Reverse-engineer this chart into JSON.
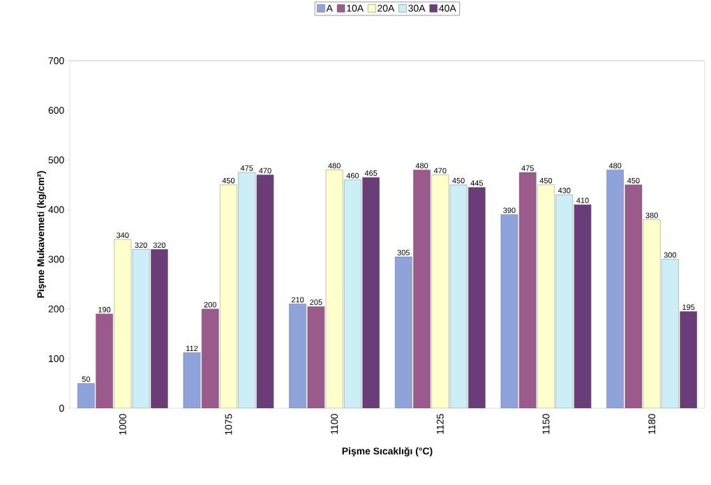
{
  "chart_data": {
    "type": "bar",
    "xlabel": "Pişme Sıcaklığı (°C)",
    "ylabel": "Pişme Mukavemeti (kg/cm²)",
    "categories": [
      "1000",
      "1075",
      "1100",
      "1125",
      "1150",
      "1180"
    ],
    "series": [
      {
        "name": "A",
        "color": "#8fa3da",
        "values": [
          50,
          112,
          210,
          305,
          390,
          480
        ]
      },
      {
        "name": "10A",
        "color": "#9b5a8c",
        "values": [
          190,
          200,
          205,
          480,
          475,
          450
        ]
      },
      {
        "name": "20A",
        "color": "#ffffcc",
        "values": [
          340,
          450,
          480,
          470,
          450,
          380
        ]
      },
      {
        "name": "30A",
        "color": "#cceef7",
        "values": [
          320,
          475,
          460,
          450,
          430,
          300
        ]
      },
      {
        "name": "40A",
        "color": "#6a3d78",
        "values": [
          320,
          470,
          465,
          445,
          410,
          195
        ]
      }
    ],
    "ylim": [
      0,
      700
    ],
    "yticks": [
      0,
      100,
      200,
      300,
      400,
      500,
      600,
      700
    ],
    "grid": false,
    "legend": "top",
    "data_labels": true
  }
}
